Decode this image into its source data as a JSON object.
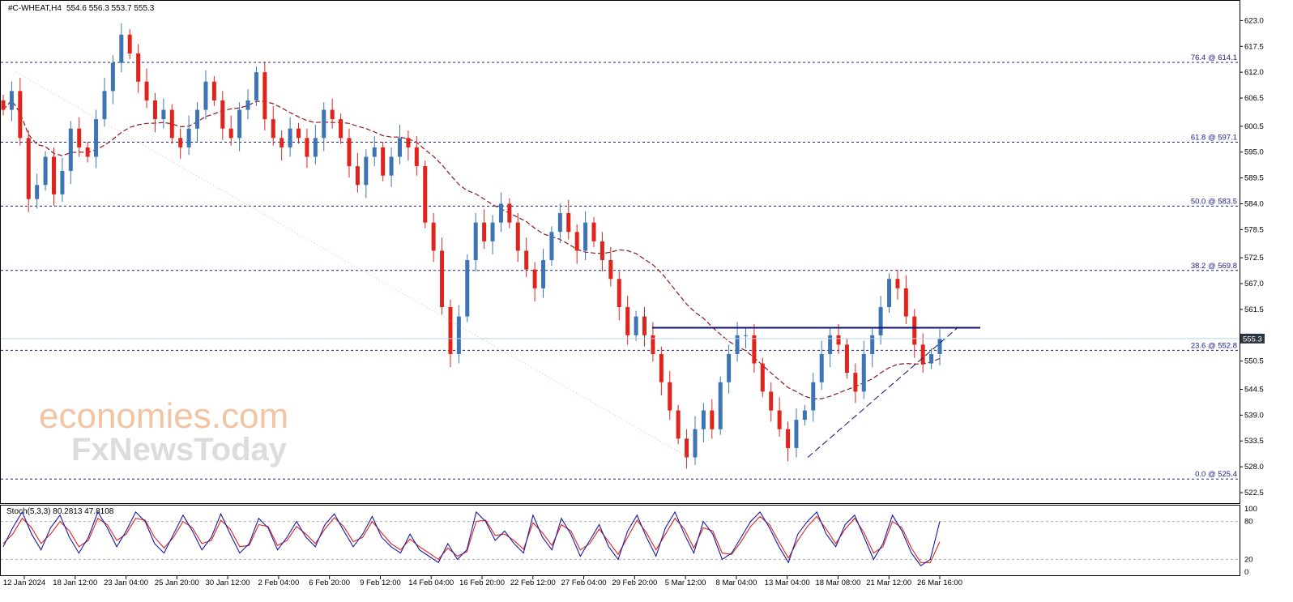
{
  "header": {
    "symbol": "#C-WHEAT,H4",
    "ohlc": "554.6 556.3 553.7 555.3"
  },
  "indicator": {
    "label": "Stoch(5,3,3) 80.2813 47.8108",
    "levels": [
      "100",
      "80",
      "20",
      "0"
    ]
  },
  "watermark": {
    "line1": "economies.com",
    "line2": "FxNewsToday"
  },
  "colors": {
    "bull": "#3d74b4",
    "bear": "#e0231b",
    "ma": "#8b1a1a",
    "fib": "#1b1f8f",
    "resistance": "#0c1272",
    "stoch_main": "#1a1aa8",
    "stoch_signal": "#e0231b",
    "price_tag_bg": "#2c3440"
  },
  "price_axis": {
    "ticks": [
      "623.0",
      "617.5",
      "612.0",
      "606.5",
      "600.5",
      "595.0",
      "589.5",
      "584.0",
      "578.5",
      "572.5",
      "567.0",
      "561.5",
      "550.5",
      "544.5",
      "539.0",
      "533.5",
      "528.0",
      "522.5"
    ],
    "last_price": "555.3"
  },
  "time_axis": {
    "ticks": [
      "12 Jan 2024",
      "18 Jan 12:00",
      "23 Jan 04:00",
      "25 Jan 20:00",
      "30 Jan 12:00",
      "2 Feb 04:00",
      "6 Feb 20:00",
      "9 Feb 12:00",
      "14 Feb 04:00",
      "16 Feb 20:00",
      "22 Feb 12:00",
      "27 Feb 04:00",
      "29 Feb 20:00",
      "5 Mar 12:00",
      "8 Mar 04:00",
      "13 Mar 04:00",
      "18 Mar 08:00",
      "21 Mar 12:00",
      "26 Mar 16:00"
    ]
  },
  "chart_data": {
    "type": "candlestick",
    "y_range": [
      522.5,
      626.0
    ],
    "fib_levels": [
      {
        "label": "76.4 @ 614.1",
        "value": 614.1
      },
      {
        "label": "61.8 @ 597.1",
        "value": 597.1
      },
      {
        "label": "50.0 @ 583.5",
        "value": 583.5
      },
      {
        "label": "38.2 @ 569.8",
        "value": 569.8
      },
      {
        "label": "23.6 @ 552.8",
        "value": 552.8
      },
      {
        "label": "0.0 @ 525.4",
        "value": 525.4
      }
    ],
    "resistance": 557.6,
    "closes": [
      604,
      608,
      598,
      585,
      588,
      594,
      586,
      591,
      600,
      596,
      594,
      602,
      608,
      614,
      620,
      616,
      610,
      606,
      602,
      604,
      598,
      596,
      600,
      604,
      610,
      606,
      600,
      598,
      604,
      606,
      612,
      602,
      598,
      596,
      600,
      598,
      594,
      598,
      604,
      602,
      598,
      592,
      588,
      594,
      596,
      590,
      594,
      598,
      596,
      592,
      580,
      574,
      562,
      552,
      560,
      572,
      580,
      576,
      580,
      584,
      580,
      574,
      570,
      566,
      572,
      578,
      582,
      578,
      574,
      580,
      576,
      572,
      568,
      562,
      556,
      560,
      556,
      552,
      546,
      540,
      534,
      530,
      536,
      540,
      536,
      546,
      552,
      556,
      556,
      550,
      544,
      540,
      536,
      532,
      538,
      540,
      546,
      552,
      556,
      554,
      548,
      544,
      552,
      556,
      562,
      568,
      566,
      560,
      554,
      550,
      552,
      555.3
    ],
    "ma_period": 20,
    "stoch": {
      "k": [
        40,
        70,
        95,
        60,
        35,
        70,
        90,
        55,
        30,
        55,
        95,
        70,
        40,
        65,
        95,
        80,
        45,
        30,
        60,
        90,
        65,
        35,
        55,
        92,
        60,
        30,
        45,
        85,
        70,
        35,
        55,
        80,
        55,
        40,
        75,
        92,
        65,
        40,
        60,
        88,
        55,
        40,
        30,
        60,
        35,
        25,
        15,
        45,
        20,
        35,
        95,
        80,
        50,
        65,
        45,
        30,
        90,
        55,
        35,
        85,
        60,
        25,
        50,
        75,
        40,
        20,
        65,
        90,
        55,
        25,
        70,
        95,
        60,
        30,
        80,
        60,
        20,
        30,
        55,
        80,
        95,
        70,
        40,
        15,
        60,
        80,
        95,
        60,
        40,
        75,
        90,
        55,
        20,
        45,
        90,
        65,
        30,
        10,
        20,
        80
      ],
      "d": [
        45,
        60,
        85,
        70,
        45,
        60,
        80,
        65,
        40,
        50,
        85,
        75,
        50,
        60,
        85,
        82,
        55,
        38,
        55,
        80,
        70,
        45,
        50,
        82,
        68,
        40,
        42,
        75,
        72,
        42,
        50,
        72,
        60,
        45,
        68,
        86,
        72,
        48,
        55,
        80,
        62,
        45,
        35,
        52,
        40,
        30,
        20,
        38,
        25,
        32,
        80,
        82,
        58,
        60,
        50,
        36,
        78,
        62,
        42,
        75,
        65,
        35,
        45,
        68,
        48,
        28,
        55,
        82,
        62,
        35,
        60,
        85,
        68,
        38,
        70,
        65,
        30,
        28,
        48,
        72,
        88,
        75,
        48,
        22,
        50,
        72,
        88,
        68,
        45,
        68,
        85,
        62,
        30,
        40,
        80,
        70,
        38,
        15,
        15,
        48
      ]
    }
  }
}
